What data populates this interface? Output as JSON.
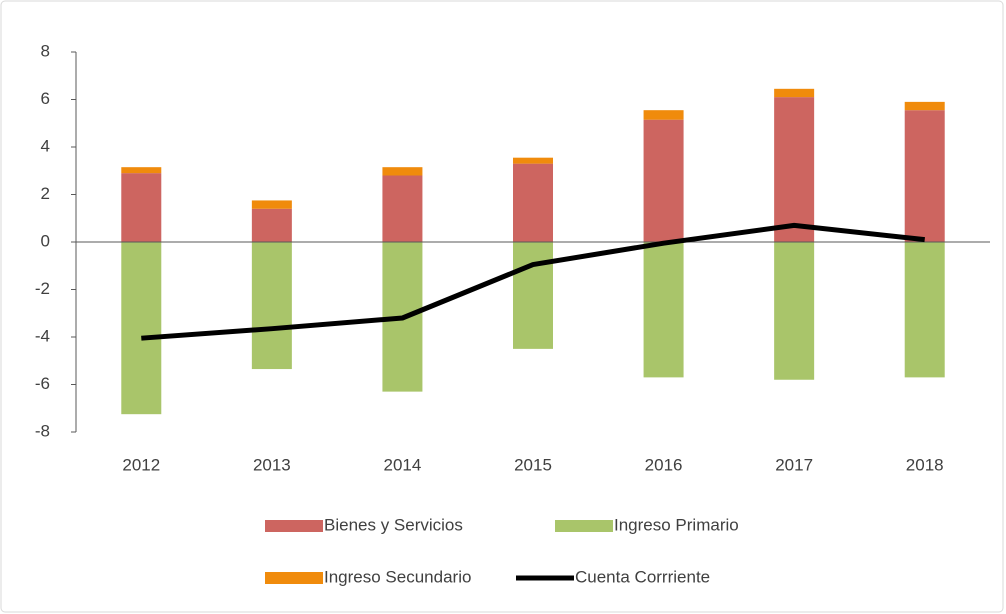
{
  "chart_data": {
    "type": "bar",
    "stacked": true,
    "categories": [
      "2012",
      "2013",
      "2014",
      "2015",
      "2016",
      "2017",
      "2018"
    ],
    "series": [
      {
        "name": "Bienes y Servicios",
        "color": "#cd6560",
        "values": [
          2.9,
          1.4,
          2.8,
          3.3,
          5.15,
          6.1,
          5.55
        ]
      },
      {
        "name": "Ingreso Primario",
        "color": "#a9c56a",
        "values": [
          -7.25,
          -5.35,
          -6.3,
          -4.5,
          -5.7,
          -5.8,
          -5.7
        ]
      },
      {
        "name": "Ingreso Secundario",
        "color": "#f08b0c",
        "values": [
          0.25,
          0.35,
          0.35,
          0.25,
          0.4,
          0.35,
          0.35
        ]
      },
      {
        "name": "Cuenta Corrriente",
        "color": "#000000",
        "type": "line",
        "values": [
          -4.05,
          -3.65,
          -3.2,
          -0.95,
          -0.05,
          0.7,
          0.1
        ]
      }
    ],
    "ylim": [
      -8,
      8
    ],
    "yticks": [
      -8,
      -6,
      -4,
      -2,
      0,
      2,
      4,
      6,
      8
    ],
    "grid": false,
    "legend": "bottom"
  }
}
